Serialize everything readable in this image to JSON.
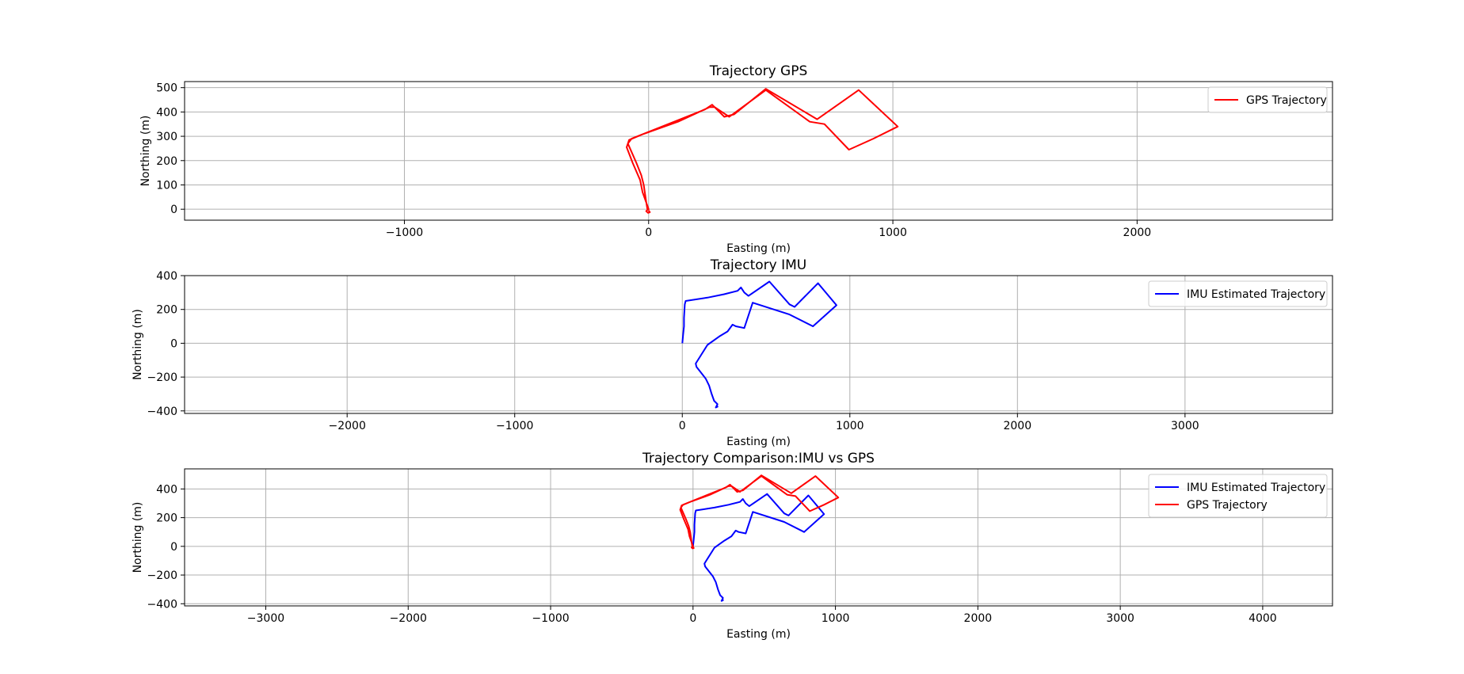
{
  "chart_data": [
    {
      "type": "line",
      "title": "Trajectory GPS",
      "xlabel": "Easting (m)",
      "ylabel": "Northing (m)",
      "xlim": [
        -1900,
        2800
      ],
      "ylim": [
        -45,
        525
      ],
      "xticks": [
        -1000,
        0,
        1000,
        2000
      ],
      "yticks": [
        0,
        100,
        200,
        300,
        400,
        500
      ],
      "grid": true,
      "legend_position": "top-right",
      "series": [
        {
          "name": "GPS Trajectory",
          "color": "#ff0000",
          "points": [
            [
              0,
              -5
            ],
            [
              5,
              -12
            ],
            [
              -2,
              -15
            ],
            [
              -10,
              -8
            ],
            [
              -4,
              -2
            ],
            [
              0,
              0
            ],
            [
              -25,
              70
            ],
            [
              -35,
              120
            ],
            [
              -65,
              190
            ],
            [
              -90,
              255
            ],
            [
              -80,
              285
            ],
            [
              -20,
              310
            ],
            [
              120,
              360
            ],
            [
              250,
              420
            ],
            [
              270,
              420
            ],
            [
              330,
              380
            ],
            [
              480,
              490
            ],
            [
              660,
              360
            ],
            [
              720,
              350
            ],
            [
              820,
              245
            ],
            [
              920,
              290
            ],
            [
              1020,
              340
            ],
            [
              860,
              490
            ],
            [
              690,
              370
            ],
            [
              480,
              495
            ],
            [
              350,
              390
            ],
            [
              310,
              380
            ],
            [
              260,
              430
            ],
            [
              230,
              410
            ],
            [
              -70,
              290
            ],
            [
              -85,
              270
            ],
            [
              -50,
              190
            ],
            [
              -30,
              140
            ],
            [
              -20,
              100
            ],
            [
              -10,
              30
            ],
            [
              -5,
              0
            ]
          ]
        }
      ]
    },
    {
      "type": "line",
      "title": "Trajectory IMU",
      "xlabel": "Easting (m)",
      "ylabel": "Northing (m)",
      "xlim": [
        -2970,
        3880
      ],
      "ylim": [
        -415,
        400
      ],
      "xticks": [
        -2000,
        -1000,
        0,
        1000,
        2000,
        3000
      ],
      "yticks": [
        -400,
        -200,
        0,
        200,
        400
      ],
      "grid": true,
      "legend_position": "top-right",
      "series": [
        {
          "name": "IMU Estimated Trajectory",
          "color": "#0000ff",
          "points": [
            [
              0,
              0
            ],
            [
              5,
              50
            ],
            [
              10,
              100
            ],
            [
              10,
              150
            ],
            [
              15,
              230
            ],
            [
              20,
              250
            ],
            [
              150,
              270
            ],
            [
              250,
              290
            ],
            [
              330,
              310
            ],
            [
              350,
              330
            ],
            [
              370,
              300
            ],
            [
              395,
              280
            ],
            [
              520,
              365
            ],
            [
              640,
              230
            ],
            [
              670,
              215
            ],
            [
              810,
              355
            ],
            [
              920,
              225
            ],
            [
              780,
              100
            ],
            [
              640,
              170
            ],
            [
              420,
              240
            ],
            [
              370,
              90
            ],
            [
              320,
              100
            ],
            [
              300,
              110
            ],
            [
              270,
              70
            ],
            [
              220,
              40
            ],
            [
              150,
              -10
            ],
            [
              80,
              -120
            ],
            [
              85,
              -140
            ],
            [
              140,
              -210
            ],
            [
              160,
              -250
            ],
            [
              175,
              -300
            ],
            [
              190,
              -340
            ],
            [
              210,
              -360
            ],
            [
              200,
              -380
            ],
            [
              210,
              -375
            ],
            [
              205,
              -365
            ]
          ]
        }
      ]
    },
    {
      "type": "line",
      "title": "Trajectory Comparison:IMU vs GPS",
      "xlabel": "Easting (m)",
      "ylabel": "Northing (m)",
      "xlim": [
        -3570,
        4490
      ],
      "ylim": [
        -415,
        540
      ],
      "xticks": [
        -3000,
        -2000,
        -1000,
        0,
        1000,
        2000,
        3000,
        4000
      ],
      "yticks": [
        -400,
        -200,
        0,
        200,
        400
      ],
      "grid": true,
      "legend_position": "top-right",
      "series": [
        {
          "name": "IMU Estimated Trajectory",
          "color": "#0000ff",
          "points": [
            [
              0,
              0
            ],
            [
              5,
              50
            ],
            [
              10,
              100
            ],
            [
              10,
              150
            ],
            [
              15,
              230
            ],
            [
              20,
              250
            ],
            [
              150,
              270
            ],
            [
              250,
              290
            ],
            [
              330,
              310
            ],
            [
              350,
              330
            ],
            [
              370,
              300
            ],
            [
              395,
              280
            ],
            [
              520,
              365
            ],
            [
              640,
              230
            ],
            [
              670,
              215
            ],
            [
              810,
              355
            ],
            [
              920,
              225
            ],
            [
              780,
              100
            ],
            [
              640,
              170
            ],
            [
              420,
              240
            ],
            [
              370,
              90
            ],
            [
              320,
              100
            ],
            [
              300,
              110
            ],
            [
              270,
              70
            ],
            [
              220,
              40
            ],
            [
              150,
              -10
            ],
            [
              80,
              -120
            ],
            [
              85,
              -140
            ],
            [
              140,
              -210
            ],
            [
              160,
              -250
            ],
            [
              175,
              -300
            ],
            [
              190,
              -340
            ],
            [
              210,
              -360
            ],
            [
              200,
              -380
            ],
            [
              210,
              -375
            ],
            [
              205,
              -365
            ]
          ]
        },
        {
          "name": "GPS Trajectory",
          "color": "#ff0000",
          "points": [
            [
              0,
              -5
            ],
            [
              5,
              -12
            ],
            [
              -2,
              -15
            ],
            [
              -10,
              -8
            ],
            [
              -4,
              -2
            ],
            [
              0,
              0
            ],
            [
              -25,
              70
            ],
            [
              -35,
              120
            ],
            [
              -65,
              190
            ],
            [
              -90,
              255
            ],
            [
              -80,
              285
            ],
            [
              -20,
              310
            ],
            [
              120,
              360
            ],
            [
              250,
              420
            ],
            [
              270,
              420
            ],
            [
              330,
              380
            ],
            [
              480,
              490
            ],
            [
              660,
              360
            ],
            [
              720,
              350
            ],
            [
              820,
              245
            ],
            [
              920,
              290
            ],
            [
              1020,
              340
            ],
            [
              860,
              490
            ],
            [
              690,
              370
            ],
            [
              480,
              495
            ],
            [
              350,
              390
            ],
            [
              310,
              380
            ],
            [
              260,
              430
            ],
            [
              230,
              410
            ],
            [
              -70,
              290
            ],
            [
              -85,
              270
            ],
            [
              -50,
              190
            ],
            [
              -30,
              140
            ],
            [
              -20,
              100
            ],
            [
              -10,
              30
            ],
            [
              -5,
              0
            ]
          ]
        }
      ]
    }
  ]
}
